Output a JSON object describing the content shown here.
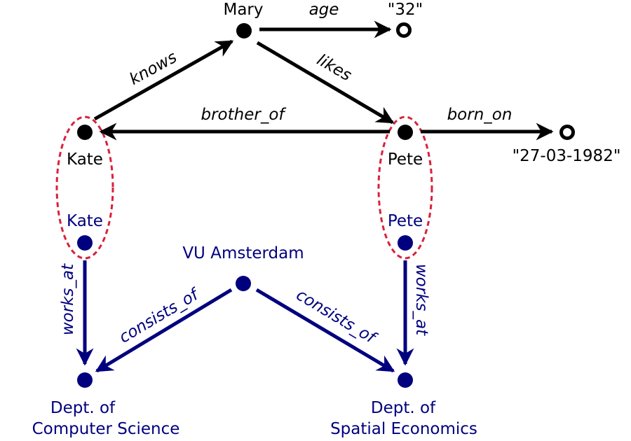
{
  "colors": {
    "black": "#000000",
    "navy": "#00007f",
    "red_dashed": "#d9213b"
  },
  "nodes": {
    "mary": "Mary",
    "age_value": "\"32\"",
    "kate_top": "Kate",
    "pete_top": "Pete",
    "born_value": "\"27-03-1982\"",
    "kate_bottom": "Kate",
    "pete_bottom": "Pete",
    "vu": "VU Amsterdam",
    "dept_cs_line1": "Dept. of",
    "dept_cs_line2": "Computer Science",
    "dept_se_line1": "Dept. of",
    "dept_se_line2": "Spatial Economics"
  },
  "edges": {
    "age": "age",
    "knows": "knows",
    "likes": "likes",
    "brother_of": "brother_of",
    "born_on": "born_on",
    "works_at_kate": "works_at",
    "works_at_pete": "works_at",
    "consists_of_cs": "consists_of",
    "consists_of_se": "consists_of"
  }
}
